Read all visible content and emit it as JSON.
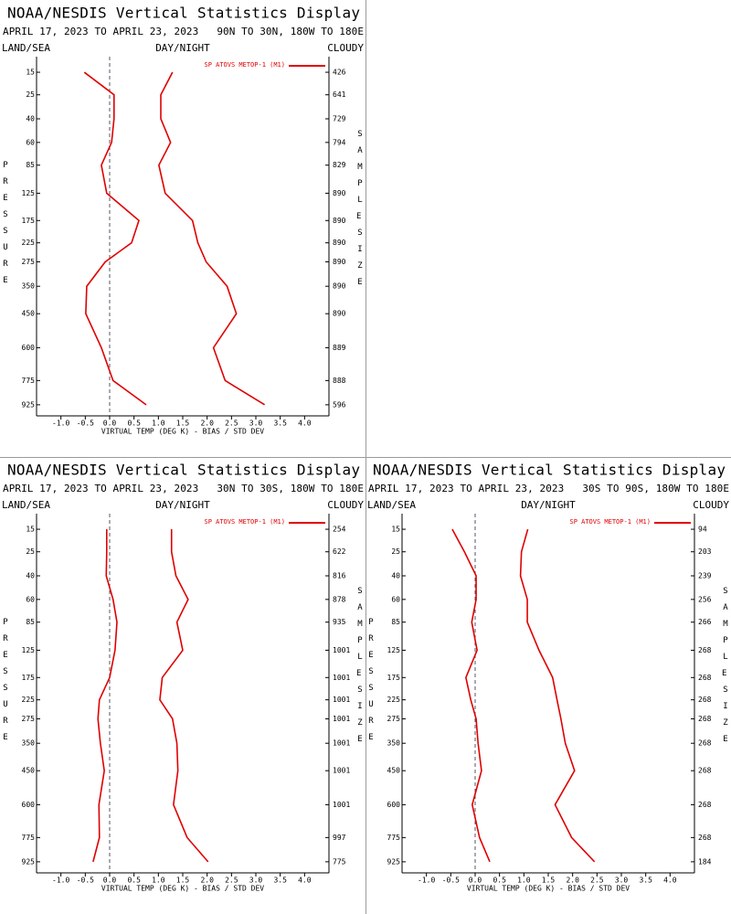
{
  "chart_data": [
    {
      "type": "line",
      "title": "NOAA/NESDIS Vertical Statistics Display",
      "subtitle": "APRIL 17, 2023 TO APRIL 23, 2023   90N TO 30N, 180W TO 180E",
      "left_label": "LAND/SEA",
      "center_label": "DAY/NIGHT",
      "right_label": "CLOUDY",
      "ylabel": "PRESSURE",
      "y2label": "SAMPLE SIZE",
      "xlabel": "VIRTUAL TEMP (DEG K) - BIAS / STD DEV",
      "xlim": [
        -1.5,
        4.5
      ],
      "xticks": [
        {
          "value": -1,
          "label": "-1.0"
        },
        -0.5,
        {
          "value": 0,
          "label": "0.0"
        },
        0.5,
        {
          "value": 1,
          "label": "1.0"
        },
        1.5,
        {
          "value": 2,
          "label": "2.0"
        },
        2.5,
        {
          "value": 3,
          "label": "3.0"
        },
        3.5,
        {
          "value": 4,
          "label": "4.0"
        }
      ],
      "ylim": [
        10,
        1000
      ],
      "y_inverted": true,
      "yticks": [
        15,
        25,
        40,
        60,
        85,
        125,
        175,
        225,
        275,
        350,
        450,
        600,
        775,
        925
      ],
      "y": [
        15,
        25,
        40,
        60,
        85,
        125,
        175,
        225,
        275,
        350,
        450,
        600,
        775,
        925
      ],
      "sample_size": [
        426,
        641,
        729,
        794,
        829,
        890,
        890,
        890,
        890,
        890,
        890,
        889,
        888,
        596
      ],
      "series": [
        {
          "name": "SP ATOVS METOP-1 (M1)",
          "color": "#e00000",
          "bias": [
            -0.52,
            0.09,
            0.09,
            0.04,
            -0.17,
            -0.06,
            0.6,
            0.45,
            -0.09,
            -0.47,
            -0.49,
            -0.17,
            0.07,
            0.75
          ],
          "std_dev": [
            1.29,
            1.05,
            1.05,
            1.25,
            1.01,
            1.14,
            1.7,
            1.81,
            1.98,
            2.41,
            2.6,
            2.13,
            2.37,
            3.18
          ]
        }
      ]
    },
    {
      "type": "line",
      "title": "NOAA/NESDIS Vertical Statistics Display",
      "subtitle": "APRIL 17, 2023 TO APRIL 23, 2023   30N TO 30S, 180W TO 180E",
      "left_label": "LAND/SEA",
      "center_label": "DAY/NIGHT",
      "right_label": "CLOUDY",
      "ylabel": "PRESSURE",
      "y2label": "SAMPLE SIZE",
      "xlabel": "VIRTUAL TEMP (DEG K) - BIAS / STD DEV",
      "xlim": [
        -1.5,
        4.5
      ],
      "xticks": [
        {
          "value": -1,
          "label": "-1.0"
        },
        -0.5,
        {
          "value": 0,
          "label": "0.0"
        },
        0.5,
        {
          "value": 1,
          "label": "1.0"
        },
        1.5,
        {
          "value": 2,
          "label": "2.0"
        },
        2.5,
        {
          "value": 3,
          "label": "3.0"
        },
        3.5,
        {
          "value": 4,
          "label": "4.0"
        }
      ],
      "ylim": [
        10,
        1000
      ],
      "y_inverted": true,
      "yticks": [
        15,
        25,
        40,
        60,
        85,
        125,
        175,
        225,
        275,
        350,
        450,
        600,
        775,
        925
      ],
      "y": [
        15,
        25,
        40,
        60,
        85,
        125,
        175,
        225,
        275,
        350,
        450,
        600,
        775,
        925
      ],
      "sample_size": [
        254,
        622,
        816,
        878,
        935,
        1001,
        1001,
        1001,
        1001,
        1001,
        1001,
        1001,
        997,
        775
      ],
      "series": [
        {
          "name": "SP ATOVS METOP-1 (M1)",
          "color": "#e00000",
          "bias": [
            -0.06,
            -0.06,
            -0.07,
            0.07,
            0.15,
            0.11,
            0.0,
            -0.21,
            -0.24,
            -0.19,
            -0.11,
            -0.22,
            -0.21,
            -0.34
          ],
          "std_dev": [
            1.27,
            1.27,
            1.36,
            1.61,
            1.38,
            1.5,
            1.08,
            1.03,
            1.29,
            1.38,
            1.4,
            1.31,
            1.59,
            2.02
          ]
        }
      ]
    },
    {
      "type": "line",
      "title": "NOAA/NESDIS Vertical Statistics Display",
      "subtitle": "APRIL 17, 2023 TO APRIL 23, 2023   30S TO 90S, 180W TO 180E",
      "left_label": "LAND/SEA",
      "center_label": "DAY/NIGHT",
      "right_label": "CLOUDY",
      "ylabel": "PRESSURE",
      "y2label": "SAMPLE SIZE",
      "xlabel": "VIRTUAL TEMP (DEG K) - BIAS / STD DEV",
      "xlim": [
        -1.5,
        4.5
      ],
      "xticks": [
        {
          "value": -1,
          "label": "-1.0"
        },
        -0.5,
        {
          "value": 0,
          "label": "0.0"
        },
        0.5,
        {
          "value": 1,
          "label": "1.0"
        },
        1.5,
        {
          "value": 2,
          "label": "2.0"
        },
        2.5,
        {
          "value": 3,
          "label": "3.0"
        },
        3.5,
        {
          "value": 4,
          "label": "4.0"
        }
      ],
      "ylim": [
        10,
        1000
      ],
      "y_inverted": true,
      "yticks": [
        15,
        25,
        40,
        60,
        85,
        125,
        175,
        225,
        275,
        350,
        450,
        600,
        775,
        925
      ],
      "y": [
        15,
        25,
        40,
        60,
        85,
        125,
        175,
        225,
        275,
        350,
        450,
        600,
        775,
        925
      ],
      "sample_size": [
        94,
        203,
        239,
        256,
        266,
        268,
        268,
        268,
        268,
        268,
        268,
        268,
        268,
        184
      ],
      "series": [
        {
          "name": "SP ATOVS METOP-1 (M1)",
          "color": "#e00000",
          "bias": [
            -0.47,
            -0.22,
            0.02,
            0.02,
            -0.07,
            0.04,
            -0.19,
            -0.09,
            0.02,
            0.06,
            0.13,
            -0.06,
            0.09,
            0.3
          ],
          "std_dev": [
            1.08,
            0.95,
            0.93,
            1.07,
            1.07,
            1.31,
            1.59,
            1.68,
            1.76,
            1.85,
            2.04,
            1.64,
            1.98,
            2.45
          ]
        }
      ]
    }
  ]
}
